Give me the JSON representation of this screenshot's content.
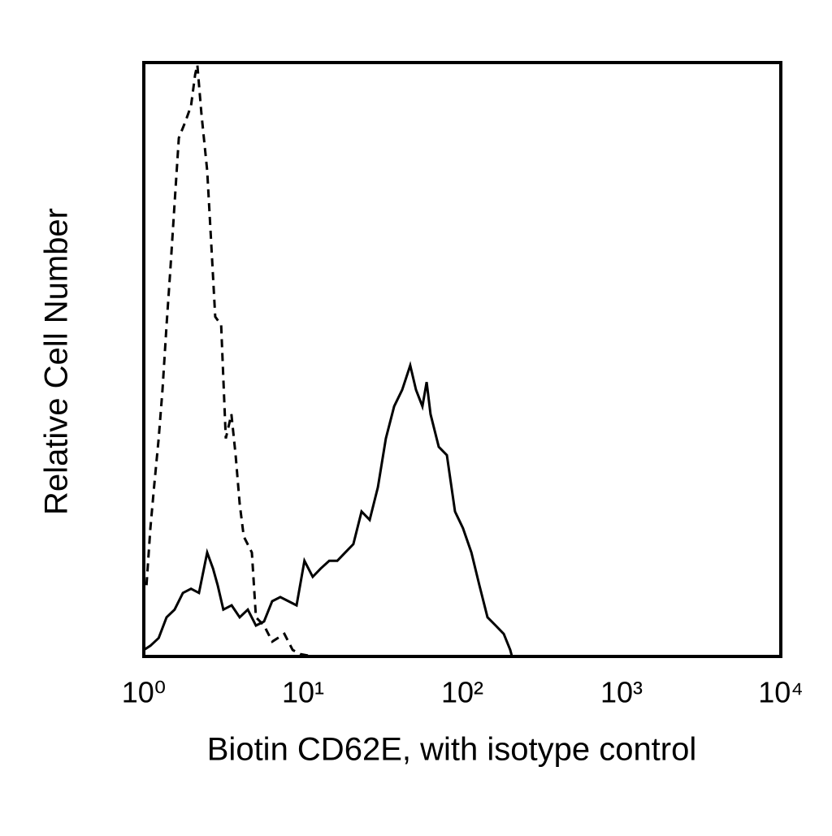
{
  "chart_data": {
    "type": "line",
    "x_label": "Biotin CD62E, with isotype control",
    "y_label": "Relative Cell Number",
    "xscale": "log",
    "xlim": [
      1,
      10000
    ],
    "ylim": [
      0,
      100
    ],
    "xticks": [
      {
        "value": 1,
        "label": "10⁰"
      },
      {
        "value": 10,
        "label": "10¹"
      },
      {
        "value": 100,
        "label": "10²"
      },
      {
        "value": 1000,
        "label": "10³"
      },
      {
        "value": 10000,
        "label": "10⁴"
      }
    ],
    "series": [
      {
        "color": "#000000",
        "dashed": true,
        "x": [
          1.04,
          1.1,
          1.16,
          1.24,
          1.31,
          1.39,
          1.47,
          1.56,
          1.66,
          1.82,
          1.98,
          2.1,
          2.17,
          2.3,
          2.5,
          2.65,
          2.81,
          3.06,
          3.27,
          3.55,
          3.77,
          4.0,
          4.24,
          4.77,
          5.06,
          5.69,
          6.41,
          7.63,
          8.6,
          9.6,
          11.5
        ],
        "values": [
          12,
          21.6,
          28.5,
          36.7,
          44.9,
          55.8,
          65.4,
          76.3,
          87.3,
          90,
          92.7,
          98,
          99.6,
          91.4,
          81.8,
          69.5,
          57.2,
          55.8,
          36.7,
          40.8,
          33.9,
          25.7,
          20.2,
          17.5,
          6.6,
          5.2,
          2.5,
          3.8,
          1.1,
          0.4,
          0
        ]
      },
      {
        "color": "#000000",
        "dashed": false,
        "x": [
          1.0,
          1.1,
          1.24,
          1.39,
          1.56,
          1.76,
          1.98,
          2.22,
          2.5,
          2.72,
          2.91,
          3.16,
          3.56,
          4.0,
          4.5,
          5.06,
          5.69,
          6.4,
          7.2,
          8.09,
          9.1,
          10.2,
          11.5,
          12.9,
          14.6,
          16.4,
          18.4,
          20.7,
          23.3,
          26.2,
          29.5,
          33.1,
          37.3,
          41.9,
          47.1,
          51.2,
          56.2,
          59.7,
          63.2,
          71.1,
          80.0,
          90.0,
          101,
          114,
          128,
          144,
          162,
          182,
          200,
          205
        ],
        "values": [
          1.1,
          1.8,
          3.1,
          6.6,
          7.9,
          10.7,
          11.4,
          10.7,
          17.5,
          14.8,
          12.0,
          7.9,
          8.6,
          6.6,
          7.9,
          5.2,
          5.9,
          9.3,
          10.0,
          9.3,
          8.6,
          16.1,
          13.4,
          14.8,
          16.1,
          16.1,
          17.5,
          18.9,
          24.4,
          23.0,
          28.5,
          36.7,
          42.1,
          44.9,
          49.0,
          44.9,
          42.1,
          46.2,
          40.8,
          35.3,
          33.9,
          24.4,
          21.6,
          17.5,
          12.0,
          6.6,
          5.2,
          3.8,
          1.1,
          0
        ]
      }
    ]
  }
}
